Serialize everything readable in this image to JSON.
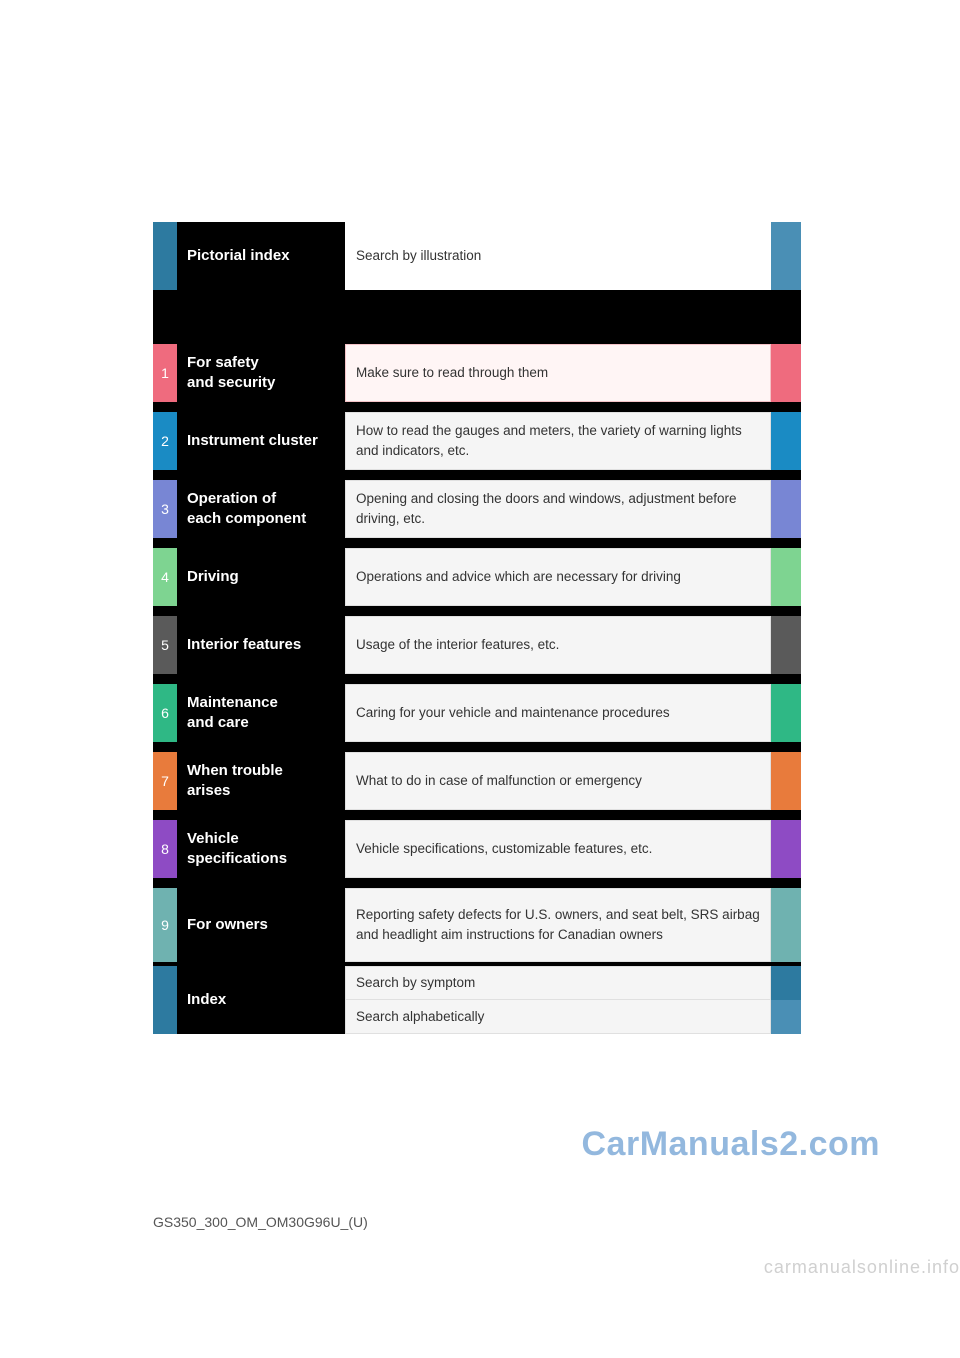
{
  "pictorial": {
    "title": "Pictorial index",
    "desc": "Search by illustration",
    "color": "#2d7aa0",
    "tab_color": "#4a8fb5"
  },
  "sections": [
    {
      "num": "1",
      "title": "For safety\nand security",
      "desc": "Make sure to read through them",
      "color": "#ef6b7e",
      "desc_bg": "#fff5f5",
      "desc_border": "#f4c2c7"
    },
    {
      "num": "2",
      "title": "Instrument cluster",
      "desc": "How to read the gauges and meters, the variety of warning lights and indicators, etc.",
      "color": "#1a8bc4",
      "desc_bg": "#f5f5f5",
      "desc_border": "#e0e0e0"
    },
    {
      "num": "3",
      "title": "Operation of\neach component",
      "desc": "Opening and closing the doors and windows, adjustment before driving, etc.",
      "color": "#7886d4",
      "desc_bg": "#f5f5f5",
      "desc_border": "#e0e0e0"
    },
    {
      "num": "4",
      "title": "Driving",
      "desc": "Operations and advice which are necessary for driving",
      "color": "#7ed491",
      "desc_bg": "#f5f5f5",
      "desc_border": "#e0e0e0"
    },
    {
      "num": "5",
      "title": "Interior features",
      "desc": "Usage of the interior features, etc.",
      "color": "#5a5a5a",
      "desc_bg": "#f5f5f5",
      "desc_border": "#e0e0e0"
    },
    {
      "num": "6",
      "title": "Maintenance\nand care",
      "desc": "Caring for your vehicle and maintenance procedures",
      "color": "#2fb885",
      "desc_bg": "#f5f5f5",
      "desc_border": "#e0e0e0"
    },
    {
      "num": "7",
      "title": "When trouble\narises",
      "desc": "What to do in case of malfunction or emergency",
      "color": "#e87b3c",
      "desc_bg": "#f5f5f5",
      "desc_border": "#e0e0e0"
    },
    {
      "num": "8",
      "title": "Vehicle\nspecifications",
      "desc": "Vehicle specifications, customizable features, etc.",
      "color": "#8e4bc4",
      "desc_bg": "#f5f5f5",
      "desc_border": "#e0e0e0"
    },
    {
      "num": "9",
      "title": "For owners",
      "desc": "Reporting safety defects for U.S. owners, and seat belt, SRS airbag and headlight aim instructions for Canadian owners",
      "color": "#6fb2b0",
      "desc_bg": "#f5f5f5",
      "desc_border": "#e0e0e0"
    }
  ],
  "index": {
    "title": "Index",
    "sub1": "Search by symptom",
    "sub2": "Search alphabetically",
    "color": "#2d7aa0",
    "tab_color": "#4a8fb5",
    "desc_bg": "#f5f5f5",
    "desc_border": "#e0e0e0"
  },
  "watermark_main": "CarManuals2.com",
  "footer_code": "GS350_300_OM_OM30G96U_(U)",
  "footer_watermark": "carmanualsonline.info"
}
